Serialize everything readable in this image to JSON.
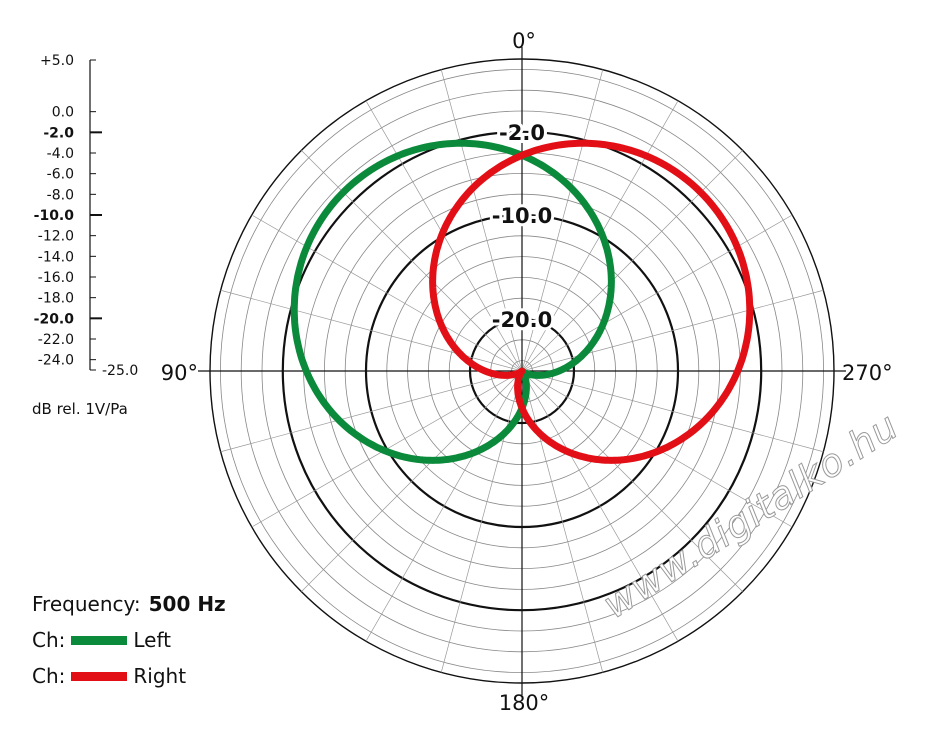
{
  "chart_data": {
    "type": "polar",
    "unit_label": "dB rel. 1V/Pa",
    "frequency_label": "Frequency:",
    "frequency_value": "500 Hz",
    "range_db": [
      -25,
      5
    ],
    "scale_ticks": [
      "+5.0",
      "0.0",
      "-2.0",
      "-4.0",
      "-6.0",
      "-8.0",
      "-10.0",
      "-12.0",
      "-14.0",
      "-16.0",
      "-18.0",
      "-20.0",
      "-22.0",
      "-24.0",
      "-25.0"
    ],
    "scale_values": [
      5,
      0,
      -2,
      -4,
      -6,
      -8,
      -10,
      -12,
      -14,
      -16,
      -18,
      -20,
      -22,
      -24,
      -25
    ],
    "major_ticks": [
      "-2.0",
      "-10.0",
      "-20.0"
    ],
    "ring_labels": [
      {
        "text": "-2.0",
        "value": -2
      },
      {
        "text": "-10.0",
        "value": -10
      },
      {
        "text": "-20.0",
        "value": -20
      }
    ],
    "angle_labels": {
      "top": "0°",
      "right": "270°",
      "bottom": "180°",
      "left": "90°"
    },
    "legend_prefix": "Ch:",
    "series": [
      {
        "name": "Left",
        "color": "#0a8a3a",
        "pattern": "cardioid",
        "rotation_deg": 45
      },
      {
        "name": "Right",
        "color": "#e30f16",
        "pattern": "cardioid",
        "rotation_deg": -45
      }
    ]
  },
  "watermark": "www.digitalko.hu"
}
